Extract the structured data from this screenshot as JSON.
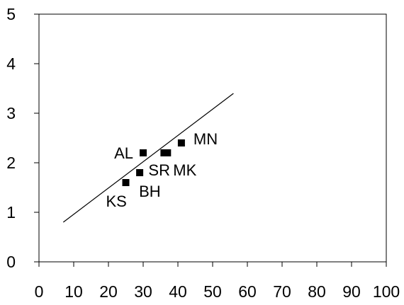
{
  "chart_data": {
    "type": "scatter",
    "title": "",
    "xlabel": "",
    "ylabel": "",
    "xlim": [
      0,
      100
    ],
    "ylim": [
      0,
      5
    ],
    "x_ticks": [
      0,
      10,
      20,
      30,
      40,
      50,
      60,
      70,
      80,
      90,
      100
    ],
    "y_ticks": [
      0,
      1,
      2,
      3,
      4,
      5
    ],
    "x_tick_labels": [
      "0",
      "10",
      "20",
      "30",
      "40",
      "50",
      "60",
      "70",
      "80",
      "90",
      "100"
    ],
    "y_tick_labels": [
      "0",
      "1",
      "2",
      "3",
      "4",
      "5"
    ],
    "grid": false,
    "legend": "none",
    "marker_color": "#000000",
    "line_color": "#000000",
    "points": [
      {
        "label": "AL",
        "x": 30,
        "y": 2.2
      },
      {
        "label": "SR",
        "x": 36,
        "y": 2.2
      },
      {
        "label": "MK",
        "x": 37,
        "y": 2.2
      },
      {
        "label": "MN",
        "x": 41,
        "y": 2.4
      },
      {
        "label": "BH",
        "x": 29,
        "y": 1.8
      },
      {
        "label": "KS",
        "x": 25,
        "y": 1.6
      }
    ],
    "trend_line": {
      "x": [
        7,
        56
      ],
      "y": [
        0.8,
        3.4
      ]
    }
  }
}
